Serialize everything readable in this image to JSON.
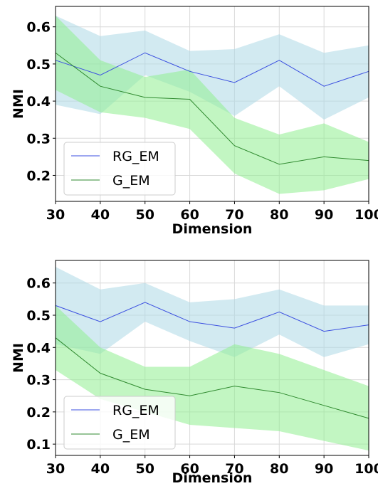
{
  "chart_data": [
    {
      "type": "line",
      "xlabel": "Dimension",
      "ylabel": "NMI",
      "x": [
        30,
        40,
        50,
        60,
        70,
        80,
        90,
        100
      ],
      "xlim": [
        30,
        100
      ],
      "ylim": [
        0.13,
        0.655
      ],
      "yticks": [
        0.2,
        0.3,
        0.4,
        0.5,
        0.6
      ],
      "ytick_labels": [
        "0.2",
        "0.3",
        "0.4",
        "0.5",
        "0.6"
      ],
      "xtick_labels": [
        "30",
        "40",
        "50",
        "60",
        "70",
        "80",
        "90",
        "100"
      ],
      "grid": true,
      "legend_position": "lower-left",
      "series": [
        {
          "name": "RG_EM",
          "line_color": "#3b4fe0",
          "band_color": "#add8e6",
          "values": [
            0.51,
            0.47,
            0.53,
            0.48,
            0.45,
            0.51,
            0.44,
            0.48
          ],
          "upper": [
            0.63,
            0.575,
            0.59,
            0.535,
            0.54,
            0.58,
            0.53,
            0.55
          ],
          "lower": [
            0.39,
            0.365,
            0.47,
            0.425,
            0.36,
            0.44,
            0.35,
            0.41
          ]
        },
        {
          "name": "G_EM",
          "line_color": "#2f8a2f",
          "band_color": "#90ee90",
          "values": [
            0.53,
            0.44,
            0.41,
            0.405,
            0.28,
            0.23,
            0.25,
            0.24
          ],
          "upper": [
            0.63,
            0.51,
            0.465,
            0.485,
            0.355,
            0.31,
            0.34,
            0.29
          ],
          "lower": [
            0.43,
            0.37,
            0.355,
            0.325,
            0.205,
            0.15,
            0.16,
            0.19
          ]
        }
      ]
    },
    {
      "type": "line",
      "xlabel": "Dimension",
      "ylabel": "NMI",
      "x": [
        30,
        40,
        50,
        60,
        70,
        80,
        90,
        100
      ],
      "xlim": [
        30,
        100
      ],
      "ylim": [
        0.065,
        0.67
      ],
      "yticks": [
        0.1,
        0.2,
        0.3,
        0.4,
        0.5,
        0.6
      ],
      "ytick_labels": [
        "0.1",
        "0.2",
        "0.3",
        "0.4",
        "0.5",
        "0.6"
      ],
      "xtick_labels": [
        "30",
        "40",
        "50",
        "60",
        "70",
        "80",
        "90",
        "100"
      ],
      "grid": true,
      "legend_position": "lower-left",
      "series": [
        {
          "name": "RG_EM",
          "line_color": "#3b4fe0",
          "band_color": "#add8e6",
          "values": [
            0.53,
            0.48,
            0.54,
            0.48,
            0.46,
            0.51,
            0.45,
            0.47
          ],
          "upper": [
            0.65,
            0.58,
            0.6,
            0.54,
            0.55,
            0.58,
            0.53,
            0.53
          ],
          "lower": [
            0.41,
            0.38,
            0.48,
            0.42,
            0.37,
            0.44,
            0.37,
            0.41
          ]
        },
        {
          "name": "G_EM",
          "line_color": "#2f8a2f",
          "band_color": "#90ee90",
          "values": [
            0.43,
            0.32,
            0.27,
            0.25,
            0.28,
            0.26,
            0.22,
            0.18
          ],
          "upper": [
            0.53,
            0.4,
            0.34,
            0.34,
            0.41,
            0.38,
            0.33,
            0.28
          ],
          "lower": [
            0.33,
            0.24,
            0.2,
            0.16,
            0.15,
            0.14,
            0.11,
            0.08
          ]
        }
      ]
    }
  ]
}
